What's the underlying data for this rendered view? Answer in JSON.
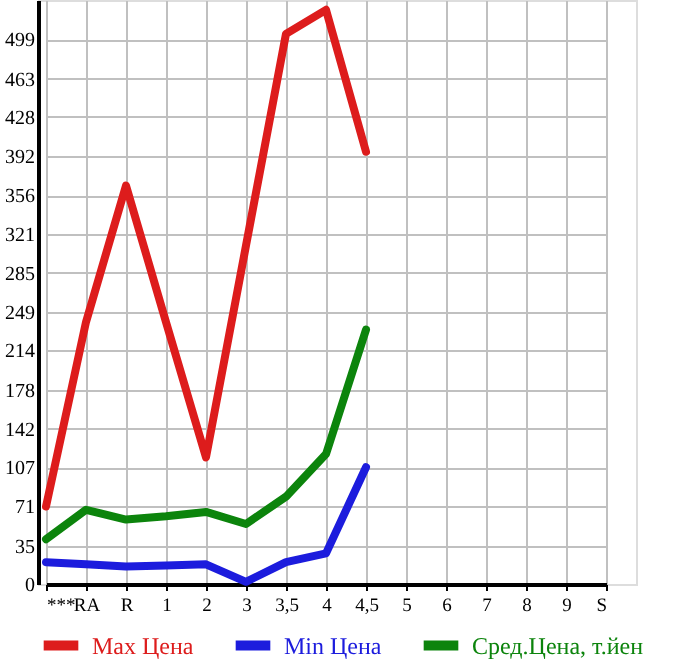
{
  "chart_data": {
    "type": "line",
    "categories": [
      "***",
      "RA",
      "R",
      "1",
      "2",
      "3",
      "3,5",
      "4",
      "4,5",
      "5",
      "6",
      "7",
      "8",
      "9",
      "S"
    ],
    "series": [
      {
        "name": "Max Цена",
        "color": "#dd1c1c",
        "values": [
          71,
          240,
          365,
          240,
          116,
          310,
          504,
          526,
          396,
          null,
          null,
          null,
          null,
          null,
          null
        ]
      },
      {
        "name": "Min Цена",
        "color": "#1c1cdd",
        "values": [
          20,
          18,
          16,
          17,
          18,
          2,
          20,
          28,
          107,
          null,
          null,
          null,
          null,
          null,
          null
        ]
      },
      {
        "name": "Сред.Цена, т.йен",
        "color": "#0c840c",
        "values": [
          41,
          68,
          59,
          62,
          66,
          55,
          80,
          119,
          233,
          null,
          null,
          null,
          null,
          null,
          null
        ]
      }
    ],
    "ylim": [
      0,
      535
    ],
    "yticks": [
      0,
      35,
      71,
      107,
      142,
      178,
      214,
      249,
      285,
      321,
      356,
      392,
      428,
      463,
      499
    ],
    "grid": true,
    "legend": "bottom",
    "marker": "none",
    "line_style": "solid"
  }
}
